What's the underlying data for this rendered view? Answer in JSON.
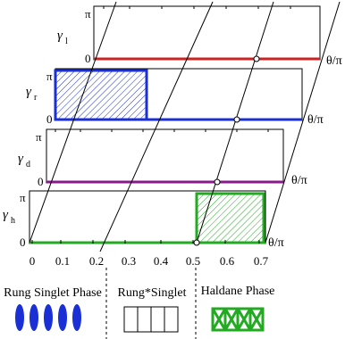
{
  "panels": [
    {
      "symbol": "γ",
      "sub": "l",
      "pi": "π",
      "zero": "0",
      "axis": "θ/π",
      "color": "#cc2222",
      "filled_interval": null
    },
    {
      "symbol": "γ",
      "sub": "r",
      "pi": "π",
      "zero": "0",
      "axis": "θ/π",
      "color": "#1a2fd6",
      "filled_interval": [
        0,
        0.35
      ]
    },
    {
      "symbol": "γ",
      "sub": "d",
      "pi": "π",
      "zero": "0",
      "axis": "θ/π",
      "color": "#8a1a8a",
      "filled_interval": null
    },
    {
      "symbol": "γ",
      "sub": "h",
      "pi": "π",
      "zero": "0",
      "axis": "θ/π",
      "color": "#22aa22",
      "filled_interval": [
        0.5,
        0.7
      ]
    }
  ],
  "x_axis": {
    "ticks": [
      "0",
      "0.1",
      "0.2",
      "0.3",
      "0.4",
      "0.5",
      "0.6",
      "0.7"
    ],
    "range": [
      0,
      0.7
    ]
  },
  "phases": [
    {
      "label": "Rung Singlet Phase",
      "color": "#1a2fd6"
    },
    {
      "label": "Rung*Singlet",
      "color": "#000000"
    },
    {
      "label": "Haldane Phase",
      "color": "#22aa22"
    }
  ]
}
